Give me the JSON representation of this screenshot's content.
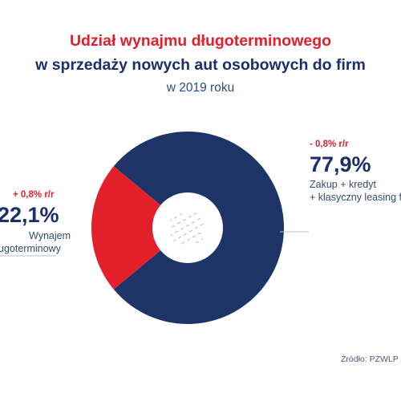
{
  "chart_data": {
    "type": "pie",
    "title": "Udział wynajmu długoterminowego",
    "title_line2": "w sprzedaży nowych aut osobowych do firm",
    "subtitle": "w 2019 roku",
    "slices": [
      {
        "value": 77.9,
        "label": "77,9%",
        "change": "- 0,8% r/r",
        "desc_1": "Zakup + kredyt",
        "desc_2": "+ klasyczny leasing f",
        "color": "#1f3466"
      },
      {
        "value": 22.1,
        "label": "22,1%",
        "change": "+ 0,8% r/r",
        "desc_1": "Wynajem",
        "desc_2": "ugoterminowy",
        "color": "#e3202a"
      }
    ],
    "source": "Źródło: PZWLP /"
  }
}
